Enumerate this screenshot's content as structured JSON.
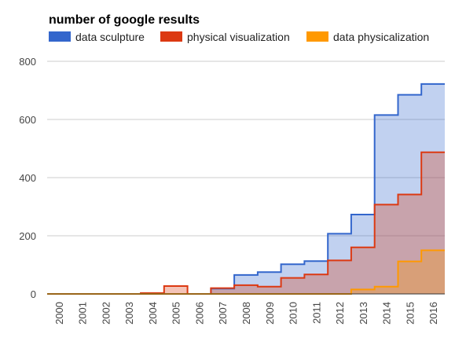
{
  "chart_data": {
    "type": "area",
    "title": "number of google results",
    "xlabel": "",
    "ylabel": "",
    "categories": [
      "2000",
      "2001",
      "2002",
      "2003",
      "2004",
      "2005",
      "2006",
      "2007",
      "2008",
      "2009",
      "2010",
      "2011",
      "2012",
      "2013",
      "2014",
      "2015",
      "2016"
    ],
    "ylim": [
      0,
      800
    ],
    "yticks": [
      0,
      200,
      400,
      600,
      800
    ],
    "grid": true,
    "legend": "top-left",
    "step": true,
    "series": [
      {
        "name": "data sculpture",
        "color": "#3366cc",
        "values": [
          0,
          0,
          0,
          0,
          2,
          0,
          0,
          18,
          65,
          75,
          102,
          113,
          207,
          273,
          615,
          685,
          722
        ]
      },
      {
        "name": "physical visualization",
        "color": "#dc3912",
        "values": [
          0,
          0,
          0,
          0,
          3,
          27,
          0,
          20,
          30,
          25,
          55,
          67,
          115,
          160,
          307,
          342,
          487
        ]
      },
      {
        "name": "data physicalization",
        "color": "#ff9900",
        "values": [
          0,
          0,
          0,
          0,
          0,
          0,
          0,
          0,
          0,
          0,
          0,
          0,
          0,
          15,
          25,
          112,
          150
        ]
      }
    ]
  }
}
